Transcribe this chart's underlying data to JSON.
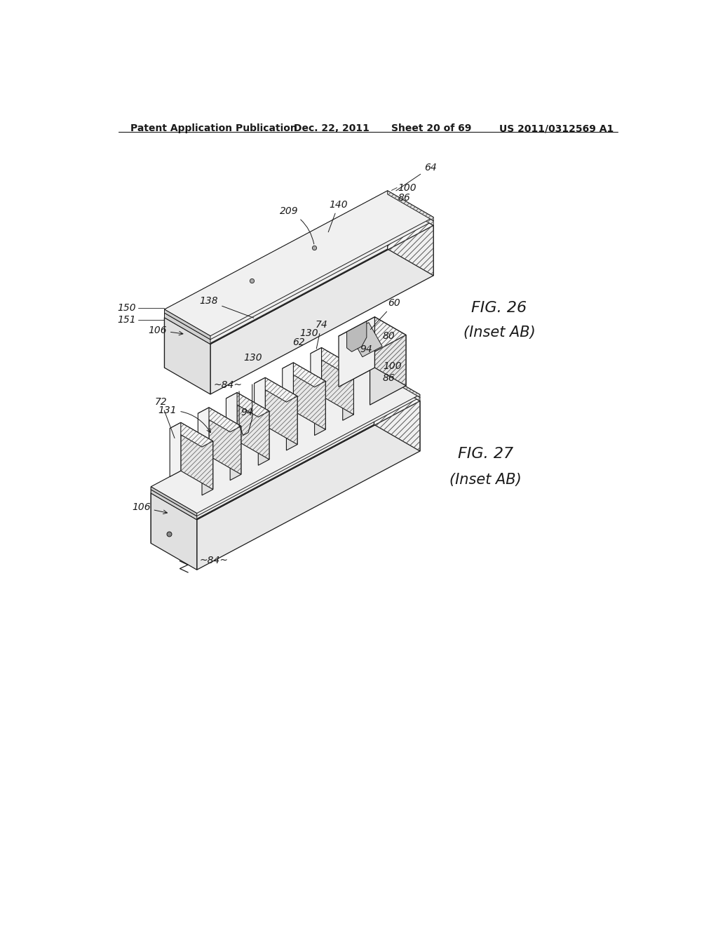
{
  "background_color": "#ffffff",
  "page_width": 10.24,
  "page_height": 13.2,
  "header_text": "Patent Application Publication",
  "header_date": "Dec. 22, 2011",
  "header_sheet": "Sheet 20 of 69",
  "header_patent": "US 2011/0312569 A1",
  "fig26_title": "FIG. 26",
  "fig26_subtitle": "(Inset AB)",
  "fig27_title": "FIG. 27",
  "fig27_subtitle": "(Inset AB)",
  "line_color": "#1a1a1a",
  "label_fontsize": 10,
  "header_fontsize": 10,
  "fig_label_fontsize": 15
}
